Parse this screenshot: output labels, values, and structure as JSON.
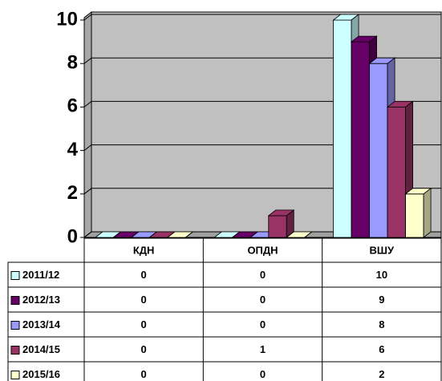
{
  "chart_data": {
    "type": "bar3d",
    "categories": [
      "КДН",
      "ОПДН",
      "ВШУ"
    ],
    "series": [
      {
        "name": "2011/12",
        "color": "#ccffff",
        "values": [
          0,
          0,
          10
        ]
      },
      {
        "name": "2012/13",
        "color": "#660066",
        "values": [
          0,
          0,
          9
        ]
      },
      {
        "name": "2013/14",
        "color": "#9999ff",
        "values": [
          0,
          0,
          8
        ]
      },
      {
        "name": "2014/15",
        "color": "#993366",
        "values": [
          0,
          1,
          6
        ]
      },
      {
        "name": "2015/16",
        "color": "#ffffcc",
        "values": [
          0,
          0,
          2
        ]
      }
    ],
    "ylim": [
      0,
      10
    ],
    "yticks": [
      0,
      2,
      4,
      6,
      8,
      10
    ],
    "grid": true,
    "data_table": true
  }
}
